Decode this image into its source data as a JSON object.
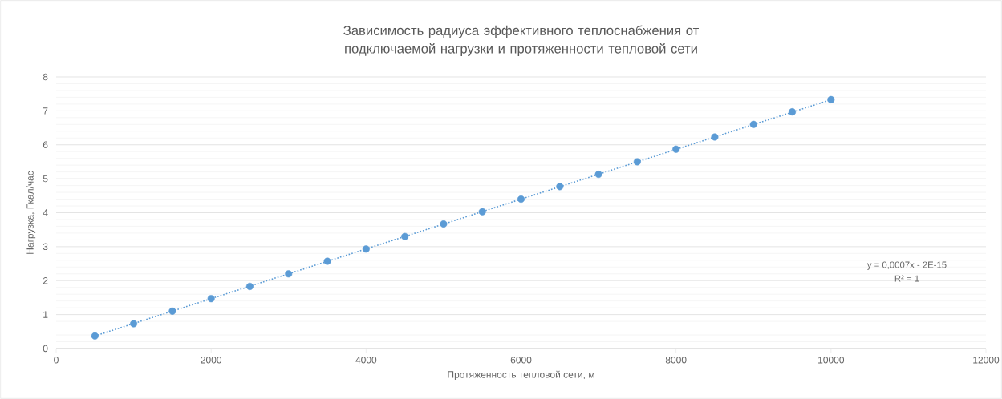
{
  "chart_data": {
    "type": "scatter",
    "title": "Зависимость радиуса эффективного теплоснабжения от подключаемой нагрузки и протяженности тепловой сети",
    "xlabel": "Протяженность тепловой сети, м",
    "ylabel": "Нагрузка, Гкал/час",
    "x": [
      500,
      1000,
      1500,
      2000,
      2500,
      3000,
      3500,
      4000,
      4500,
      5000,
      5500,
      6000,
      6500,
      7000,
      7500,
      8000,
      8500,
      9000,
      9500,
      10000
    ],
    "series": [
      {
        "color": "#5b9bd5",
        "marker": "circle",
        "values": [
          0.37,
          0.73,
          1.1,
          1.47,
          1.83,
          2.2,
          2.57,
          2.93,
          3.3,
          3.67,
          4.03,
          4.4,
          4.77,
          5.13,
          5.5,
          5.87,
          6.23,
          6.6,
          6.97,
          7.33
        ]
      },
      {
        "type": "line",
        "color": "#5b9bd5",
        "marker": "none",
        "line_style": "dotted",
        "x": [
          500,
          10000
        ],
        "values": [
          0.37,
          7.33
        ]
      }
    ],
    "xlim": [
      0,
      12000
    ],
    "xticks": [
      0,
      2000,
      4000,
      6000,
      8000,
      10000,
      12000
    ],
    "ylim": [
      0,
      8
    ],
    "yticks": [
      0,
      1,
      2,
      3,
      4,
      5,
      6,
      7,
      8
    ],
    "grid": "y",
    "annotations": [
      "y = 0,0007x - 2E-15",
      "R² = 1"
    ]
  }
}
